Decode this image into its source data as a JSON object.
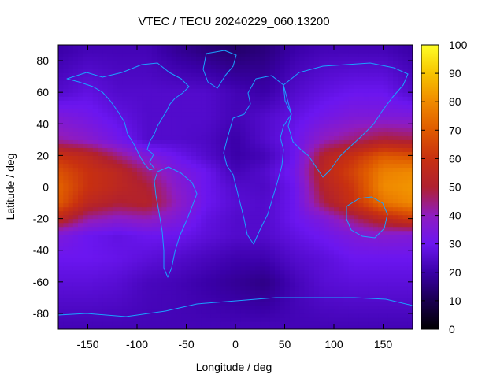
{
  "chart_data": {
    "type": "heatmap",
    "title": "VTEC / TECU 20240229_060.13200",
    "xlabel": "Longitude / deg",
    "ylabel": "Latitude / deg",
    "xlim": [
      -180,
      180
    ],
    "ylim": [
      -90,
      90
    ],
    "x_ticks": [
      -150,
      -100,
      -50,
      0,
      50,
      100,
      150
    ],
    "y_ticks": [
      -80,
      -60,
      -40,
      -20,
      0,
      20,
      40,
      60,
      80
    ],
    "colorbar": {
      "range": [
        0,
        100
      ],
      "ticks": [
        0,
        10,
        20,
        30,
        40,
        50,
        60,
        70,
        80,
        90,
        100
      ],
      "palette": "black-purple-red-orange-yellow"
    },
    "grid": false,
    "overlay": "coastlines",
    "colors": {
      "coastline": "#1aa2ff",
      "background": "#ffffff",
      "axis": "#000000"
    },
    "lat_points": [
      -87.5,
      -60,
      -45,
      -30,
      -20,
      -10,
      0,
      10,
      20,
      30,
      45,
      60,
      87.5
    ],
    "lon_points": [
      -180,
      -150,
      -120,
      -90,
      -60,
      -30,
      0,
      30,
      60,
      90,
      120,
      150,
      180
    ],
    "values": [
      [
        22,
        22,
        22,
        22,
        22,
        22,
        22,
        22,
        22,
        22,
        22,
        22,
        22
      ],
      [
        27,
        27,
        26,
        23,
        22,
        20,
        18,
        16,
        22,
        26,
        27,
        27,
        27
      ],
      [
        30,
        30,
        29,
        27,
        25,
        23,
        21,
        21,
        25,
        27,
        30,
        30,
        30
      ],
      [
        35,
        30,
        28,
        30,
        30,
        27,
        25,
        25,
        28,
        31,
        35,
        37,
        36
      ],
      [
        55,
        42,
        38,
        40,
        35,
        28,
        25,
        25,
        30,
        35,
        45,
        55,
        62
      ],
      [
        70,
        55,
        50,
        52,
        40,
        30,
        26,
        25,
        30,
        48,
        60,
        75,
        80
      ],
      [
        72,
        60,
        55,
        50,
        38,
        30,
        25,
        24,
        30,
        52,
        62,
        80,
        82
      ],
      [
        68,
        60,
        55,
        45,
        35,
        30,
        22,
        25,
        32,
        55,
        65,
        78,
        80
      ],
      [
        60,
        55,
        45,
        35,
        30,
        25,
        20,
        22,
        30,
        52,
        60,
        70,
        68
      ],
      [
        42,
        38,
        32,
        25,
        25,
        24,
        20,
        25,
        30,
        40,
        45,
        50,
        48
      ],
      [
        35,
        32,
        28,
        25,
        25,
        25,
        22,
        25,
        28,
        32,
        35,
        35,
        35
      ],
      [
        25,
        28,
        25,
        25,
        25,
        25,
        22,
        20,
        25,
        28,
        30,
        30,
        25
      ],
      [
        20,
        22,
        22,
        22,
        18,
        15,
        13,
        15,
        20,
        22,
        22,
        22,
        20
      ]
    ]
  }
}
